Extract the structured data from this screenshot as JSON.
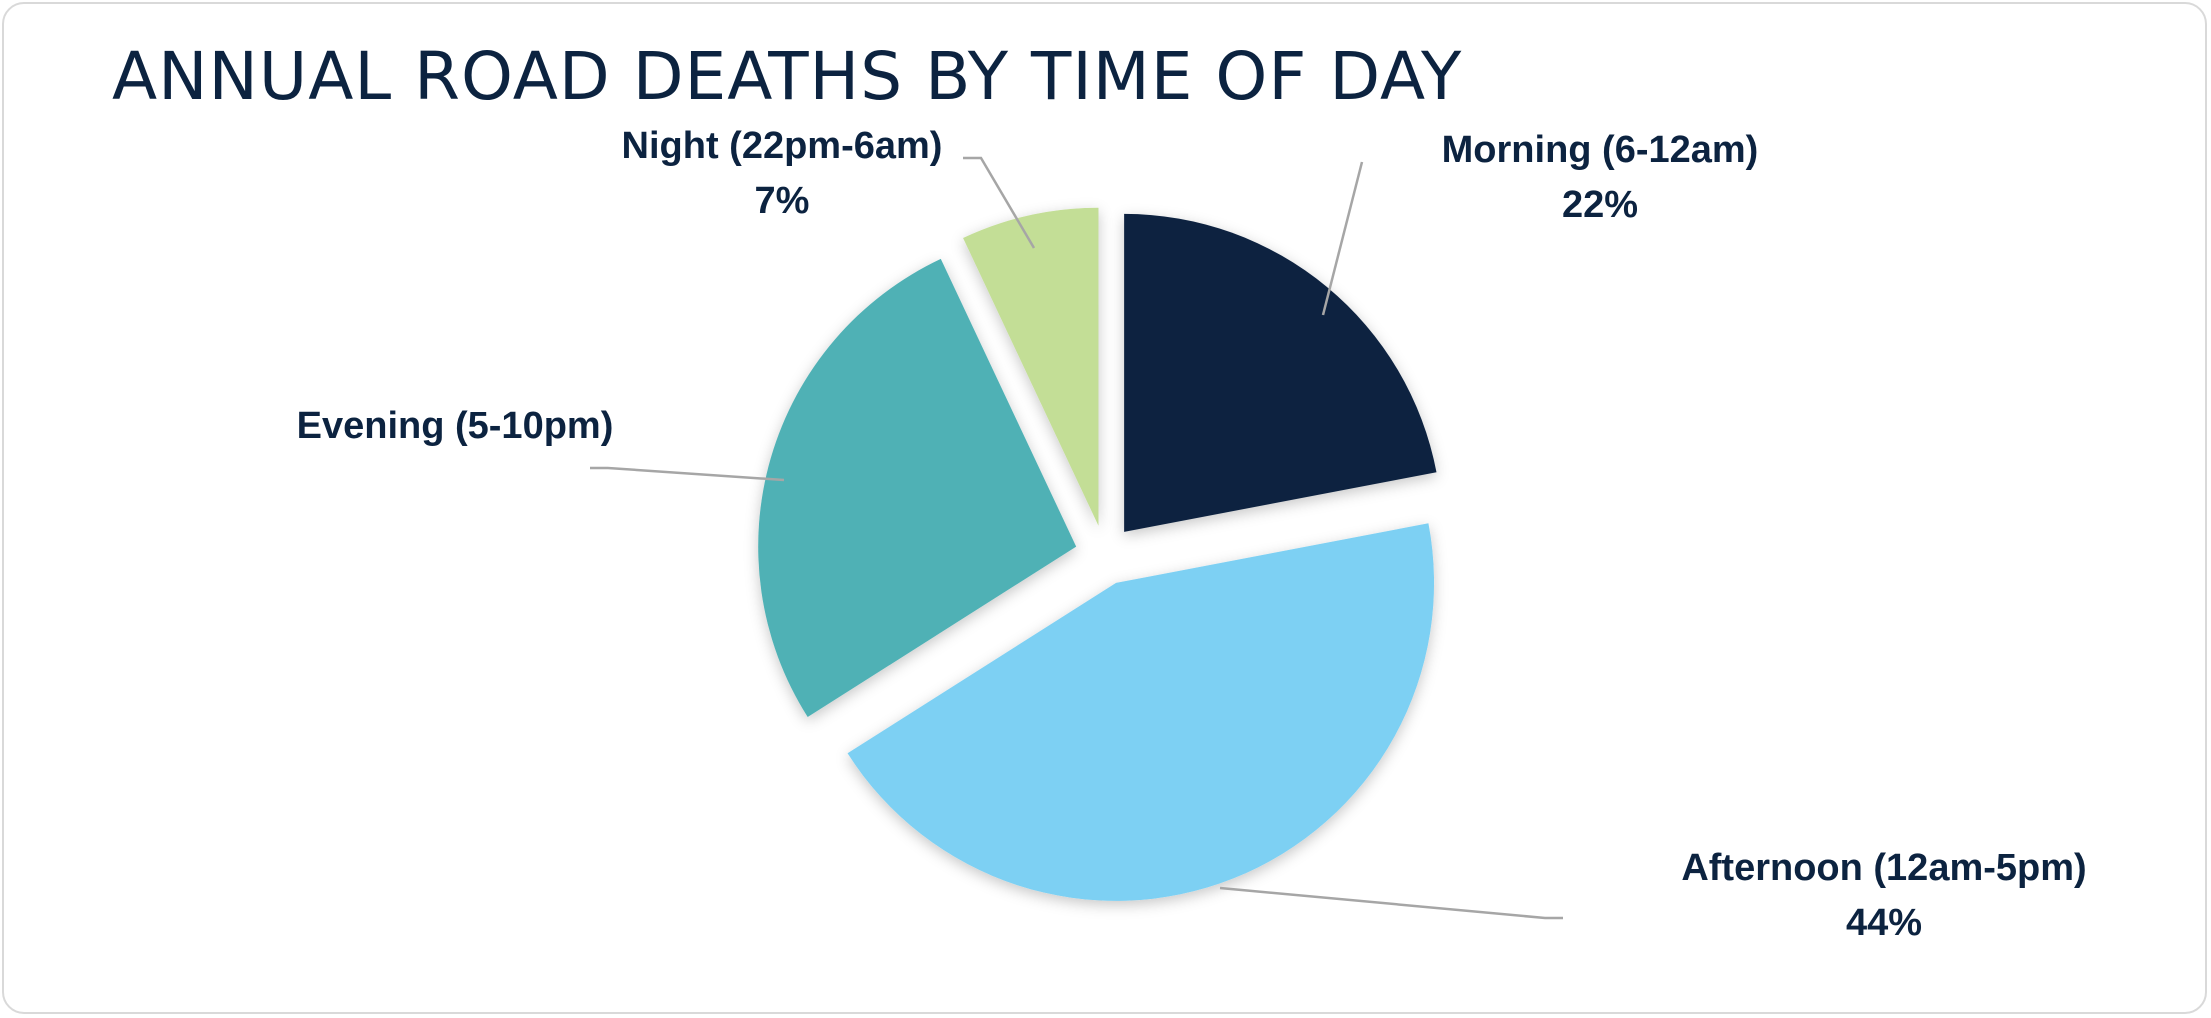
{
  "chart_data": {
    "type": "pie",
    "title": "ANNUAL ROAD DEATHS BY TIME OF DAY",
    "slices": [
      {
        "label": "Morning (6-12am)",
        "percent_label": "22%",
        "value": 22,
        "color": "#0c2340"
      },
      {
        "label": "Afternoon (12am-5pm)",
        "percent_label": "44%",
        "value": 44,
        "color": "#7dd0f3"
      },
      {
        "label": "Evening (5-10pm)",
        "percent_label": "",
        "value": 27,
        "color": "#4fb1b5"
      },
      {
        "label": "Night (22pm-6am)",
        "percent_label": "7%",
        "value": 7,
        "color": "#c3de96"
      }
    ],
    "exploded": true,
    "legend": "none"
  }
}
